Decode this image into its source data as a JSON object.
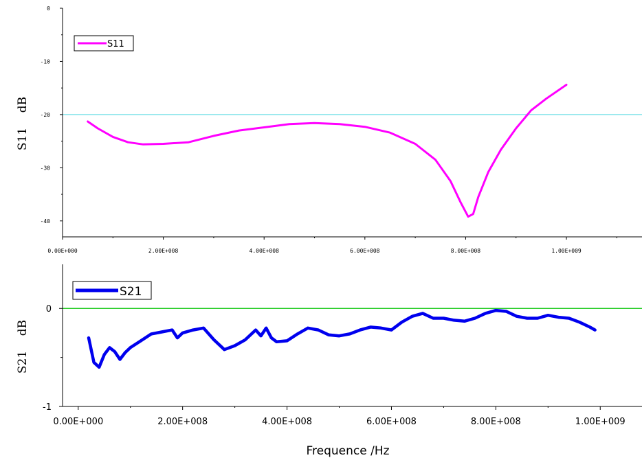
{
  "chart_data": [
    {
      "type": "line",
      "title": "",
      "xlabel": "",
      "ylabel": "S11    dB",
      "xlim": [
        0,
        1150000000
      ],
      "ylim": [
        -43,
        0
      ],
      "x_ticks": [
        0,
        200000000,
        400000000,
        600000000,
        800000000,
        1000000000
      ],
      "x_tick_labels": [
        "0.00E+000",
        "2.00E+008",
        "4.00E+008",
        "6.00E+008",
        "8.00E+008",
        "1.00E+009"
      ],
      "y_ticks": [
        0,
        -10,
        -20,
        -30,
        -40
      ],
      "y_tick_labels": [
        "0",
        "-10",
        "-20",
        "-30",
        "-40"
      ],
      "reference_line": {
        "y": -20,
        "color": "#4fd8e0"
      },
      "legend": {
        "position": "top-left"
      },
      "series": [
        {
          "name": "S11",
          "color": "#ff00ff",
          "x": [
            50000000,
            70000000,
            100000000,
            130000000,
            160000000,
            200000000,
            250000000,
            300000000,
            350000000,
            400000000,
            450000000,
            500000000,
            550000000,
            600000000,
            650000000,
            700000000,
            740000000,
            770000000,
            790000000,
            805000000,
            815000000,
            825000000,
            845000000,
            870000000,
            900000000,
            930000000,
            960000000,
            1000000000
          ],
          "y": [
            -21.3,
            -22.6,
            -24.2,
            -25.2,
            -25.6,
            -25.5,
            -25.2,
            -24.0,
            -23.0,
            -22.4,
            -21.8,
            -21.6,
            -21.8,
            -22.3,
            -23.4,
            -25.5,
            -28.5,
            -32.5,
            -36.5,
            -39.2,
            -38.7,
            -35.5,
            -30.8,
            -26.6,
            -22.6,
            -19.2,
            -17.0,
            -14.4
          ]
        }
      ]
    },
    {
      "type": "line",
      "title": "",
      "xlabel": "Frequence /Hz",
      "ylabel": "S21    dB",
      "xlim": [
        -30000000,
        1080000000
      ],
      "ylim": [
        -1,
        0.45
      ],
      "x_ticks": [
        0,
        200000000,
        400000000,
        600000000,
        800000000,
        1000000000
      ],
      "x_tick_labels": [
        "0.00E+000",
        "2.00E+008",
        "4.00E+008",
        "6.00E+008",
        "8.00E+008",
        "1.00E+009"
      ],
      "y_ticks": [
        0,
        -1
      ],
      "y_tick_labels": [
        "0",
        "-1"
      ],
      "reference_line": {
        "y": 0,
        "color": "#22cc22"
      },
      "legend": {
        "position": "top-left"
      },
      "series": [
        {
          "name": "S21",
          "color": "#0000ee",
          "x": [
            20000000,
            30000000,
            40000000,
            50000000,
            60000000,
            70000000,
            80000000,
            90000000,
            100000000,
            120000000,
            140000000,
            160000000,
            180000000,
            190000000,
            200000000,
            220000000,
            240000000,
            260000000,
            280000000,
            300000000,
            320000000,
            340000000,
            350000000,
            360000000,
            370000000,
            380000000,
            400000000,
            420000000,
            440000000,
            460000000,
            480000000,
            500000000,
            520000000,
            540000000,
            560000000,
            580000000,
            600000000,
            620000000,
            640000000,
            660000000,
            680000000,
            700000000,
            720000000,
            740000000,
            760000000,
            780000000,
            800000000,
            820000000,
            840000000,
            860000000,
            880000000,
            900000000,
            920000000,
            940000000,
            960000000,
            980000000,
            990000000
          ],
          "y": [
            -0.3,
            -0.55,
            -0.6,
            -0.47,
            -0.4,
            -0.44,
            -0.52,
            -0.45,
            -0.4,
            -0.33,
            -0.26,
            -0.24,
            -0.22,
            -0.3,
            -0.25,
            -0.22,
            -0.2,
            -0.32,
            -0.42,
            -0.38,
            -0.32,
            -0.22,
            -0.28,
            -0.2,
            -0.3,
            -0.34,
            -0.33,
            -0.26,
            -0.2,
            -0.22,
            -0.27,
            -0.28,
            -0.26,
            -0.22,
            -0.19,
            -0.2,
            -0.22,
            -0.14,
            -0.08,
            -0.05,
            -0.1,
            -0.1,
            -0.12,
            -0.13,
            -0.1,
            -0.05,
            -0.02,
            -0.03,
            -0.08,
            -0.1,
            -0.1,
            -0.07,
            -0.09,
            -0.1,
            -0.14,
            -0.19,
            -0.22
          ]
        }
      ]
    }
  ]
}
